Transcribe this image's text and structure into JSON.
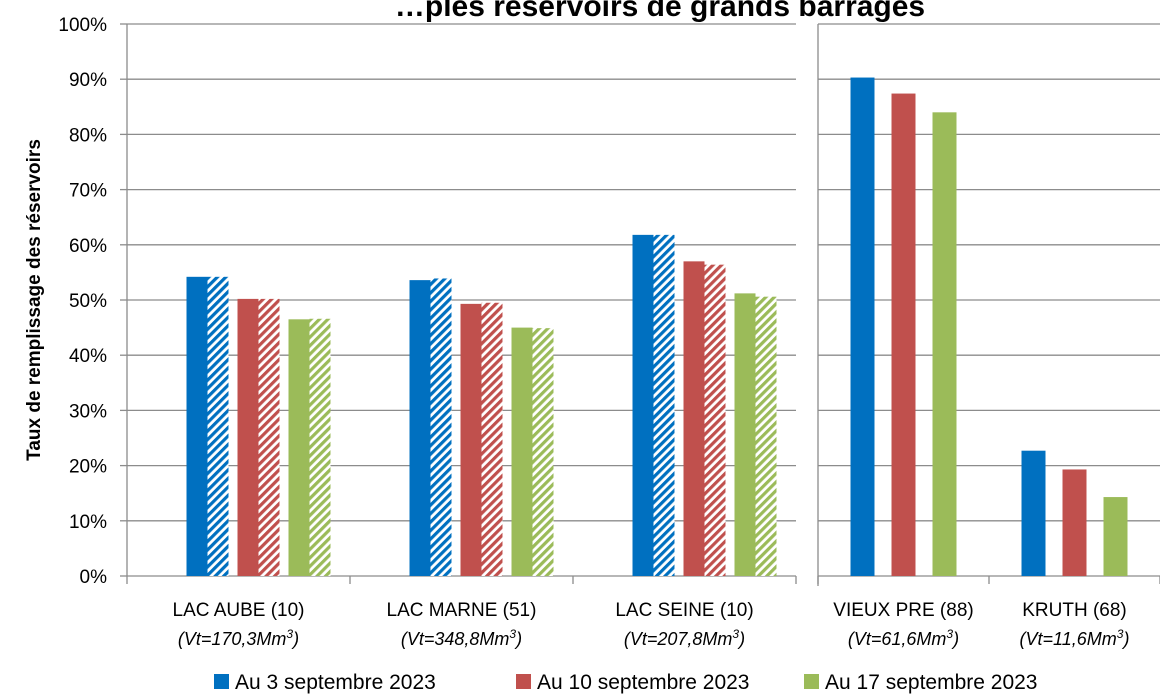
{
  "chart_data": {
    "type": "bar",
    "title": "…ples réservoirs de grands barrages",
    "ylabel": "Taux de remplissage des réservoirs",
    "ylim": [
      0,
      100
    ],
    "yticks": [
      "0%",
      "10%",
      "20%",
      "30%",
      "40%",
      "50%",
      "60%",
      "70%",
      "80%",
      "90%",
      "100%"
    ],
    "categories": [
      {
        "label": "LAC AUBE (10)",
        "sub_prefix": "(Vt=170,3Mm",
        "sub_sup": "3",
        "sub_suffix": ")"
      },
      {
        "label": "LAC MARNE (51)",
        "sub_prefix": "(Vt=348,8Mm",
        "sub_sup": "3",
        "sub_suffix": ")"
      },
      {
        "label": "LAC SEINE (10)",
        "sub_prefix": "(Vt=207,8Mm",
        "sub_sup": "3",
        "sub_suffix": ")"
      },
      {
        "label": "VIEUX PRE (88)",
        "sub_prefix": "(Vt=61,6Mm",
        "sub_sup": "3",
        "sub_suffix": ")"
      },
      {
        "label": "KRUTH (68)",
        "sub_prefix": "(Vt=11,6Mm",
        "sub_sup": "3",
        "sub_suffix": ")"
      }
    ],
    "panels": [
      {
        "categories": [
          0,
          1,
          2
        ],
        "hatched": true
      },
      {
        "categories": [
          3,
          4
        ],
        "hatched": false
      }
    ],
    "series": [
      {
        "name": "Au 3 septembre 2023",
        "color": "#0070C0",
        "values": [
          54.2,
          53.6,
          61.8,
          90.3,
          22.7
        ]
      },
      {
        "name": "Au 10 septembre 2023",
        "color": "#C0504D",
        "values": [
          50.2,
          49.3,
          57.0,
          87.4,
          19.3
        ]
      },
      {
        "name": "Au 17 septembre 2023",
        "color": "#9BBB59",
        "values": [
          46.5,
          45.0,
          51.2,
          84.0,
          14.3
        ]
      }
    ],
    "hatched_values": [
      [
        54.2,
        53.9,
        61.8
      ],
      [
        50.2,
        49.5,
        56.4
      ],
      [
        46.6,
        44.9,
        50.6
      ]
    ],
    "grid": true,
    "legend_position": "bottom"
  }
}
